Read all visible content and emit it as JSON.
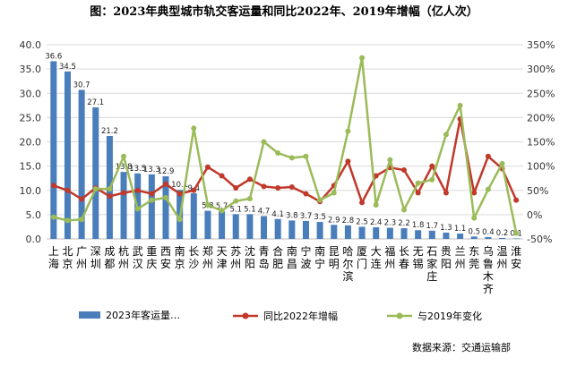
{
  "chart_data": {
    "type": "bar",
    "title": "图：2023年典型城市轨交客运量和同比2022年、2019年增幅（亿人次）",
    "source": "数据来源：交通运输部",
    "categories": [
      "上海",
      "北京",
      "广州",
      "深圳",
      "成都",
      "杭州",
      "武汉",
      "重庆",
      "西安",
      "南京",
      "长沙",
      "郑州",
      "天津",
      "苏州",
      "沈阳",
      "青岛",
      "合肥",
      "南昌",
      "宁波",
      "南宁",
      "昆明",
      "哈尔滨",
      "厦门",
      "大连",
      "福州",
      "长春",
      "无锡",
      "石家庄",
      "贵阳",
      "兰州",
      "东莞",
      "乌鲁木齐",
      "温州",
      "淮安"
    ],
    "left_axis": {
      "ylim": [
        0,
        40
      ],
      "ticks": [
        "0.0",
        "5.0",
        "10.0",
        "15.0",
        "20.0",
        "25.0",
        "30.0",
        "35.0",
        "40.0"
      ]
    },
    "right_axis": {
      "ylim": [
        -50,
        350
      ],
      "ticks": [
        "-50%",
        "0%",
        "50%",
        "100%",
        "150%",
        "200%",
        "250%",
        "300%",
        "350%"
      ]
    },
    "series": [
      {
        "name": "2023年客运量…",
        "kind": "bar",
        "axis": "left",
        "color": "#4a7ebb",
        "values": [
          36.6,
          34.5,
          30.7,
          27.1,
          21.2,
          13.8,
          13.5,
          13.3,
          12.9,
          10.1,
          9.4,
          5.8,
          5.7,
          5.1,
          5.1,
          4.7,
          4.1,
          3.8,
          3.7,
          3.5,
          2.9,
          2.8,
          2.5,
          2.4,
          2.3,
          2.2,
          1.8,
          1.7,
          1.3,
          1.1,
          0.5,
          0.4,
          0.2,
          0.1
        ],
        "labels": [
          "36.6",
          "34.5",
          "30.7",
          "27.1",
          "21.2",
          "13.8",
          "13.5",
          "13.3",
          "12.9",
          "10.1",
          "9.4",
          "5.8",
          "5.7",
          "5.1",
          "5.1",
          "4.7",
          "4.1",
          "3.8",
          "3.7",
          "3.5",
          "2.9",
          "2.8",
          "2.5",
          "2.4",
          "2.3",
          "2.2",
          "1.8",
          "1.7",
          "1.3",
          "1.1",
          "0.5",
          "0.4",
          "0.2",
          "0.1"
        ]
      },
      {
        "name": "同比2022年增幅",
        "kind": "line",
        "axis": "right",
        "color": "#c0392b",
        "values": [
          60,
          50,
          32,
          55,
          38,
          45,
          50,
          43,
          63,
          43,
          50,
          98,
          80,
          55,
          73,
          58,
          55,
          57,
          43,
          27,
          60,
          110,
          25,
          80,
          97,
          92,
          45,
          100,
          45,
          197,
          45,
          120,
          95,
          30
        ]
      },
      {
        "name": "与2019年变化",
        "kind": "line",
        "axis": "right",
        "color": "#9bbb59",
        "values": [
          -5,
          -12,
          -10,
          53,
          53,
          120,
          12,
          30,
          35,
          -10,
          178,
          20,
          8,
          28,
          33,
          150,
          127,
          117,
          120,
          30,
          45,
          172,
          323,
          20,
          113,
          10,
          65,
          72,
          165,
          225,
          -7,
          52,
          105,
          -38
        ]
      }
    ]
  }
}
